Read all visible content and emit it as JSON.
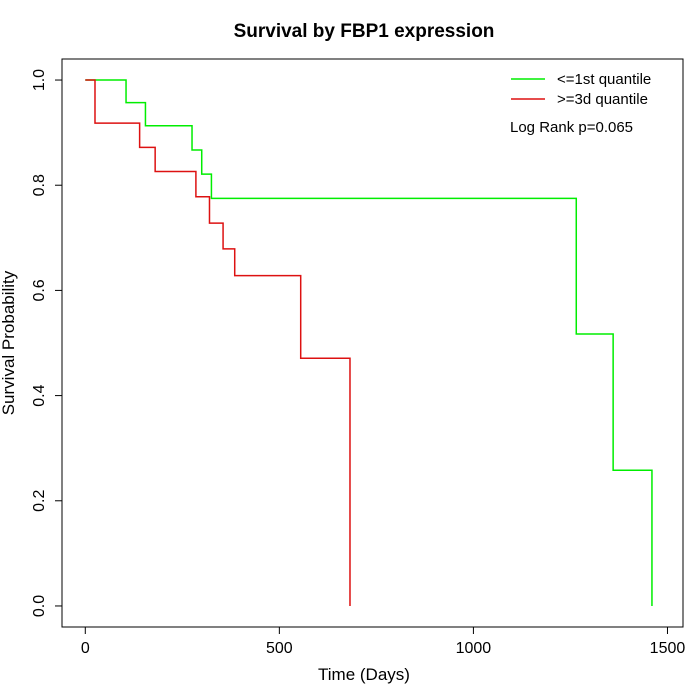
{
  "chart_data": {
    "type": "line",
    "title": "Survival by FBP1 expression",
    "xlabel": "Time (Days)",
    "ylabel": "Survival Probability",
    "xlim": [
      -60,
      1540
    ],
    "ylim": [
      -0.04,
      1.04
    ],
    "x_ticks": [
      0,
      500,
      1000,
      1500
    ],
    "x_tick_labels": [
      "0",
      "500",
      "1000",
      "1500"
    ],
    "y_ticks": [
      0.0,
      0.2,
      0.4,
      0.6,
      0.8,
      1.0
    ],
    "y_tick_labels": [
      "0.0",
      "0.2",
      "0.4",
      "0.6",
      "0.8",
      "1.0"
    ],
    "grid": false,
    "legend_position": "top-right",
    "annotation": "Log Rank p=0.065",
    "series": [
      {
        "name": "<=1st quantile",
        "color": "#00ee00",
        "step_x": [
          0,
          105,
          155,
          275,
          300,
          325,
          1265,
          1360,
          1460
        ],
        "step_y": [
          1.0,
          0.957,
          0.913,
          0.867,
          0.821,
          0.775,
          0.517,
          0.258,
          0.0
        ]
      },
      {
        "name": ">=3d quantile",
        "color": "#dd1111",
        "step_x": [
          0,
          25,
          140,
          180,
          285,
          320,
          355,
          385,
          555,
          682
        ],
        "step_y": [
          1.0,
          0.918,
          0.872,
          0.826,
          0.778,
          0.728,
          0.679,
          0.628,
          0.471,
          0.0
        ]
      }
    ]
  }
}
